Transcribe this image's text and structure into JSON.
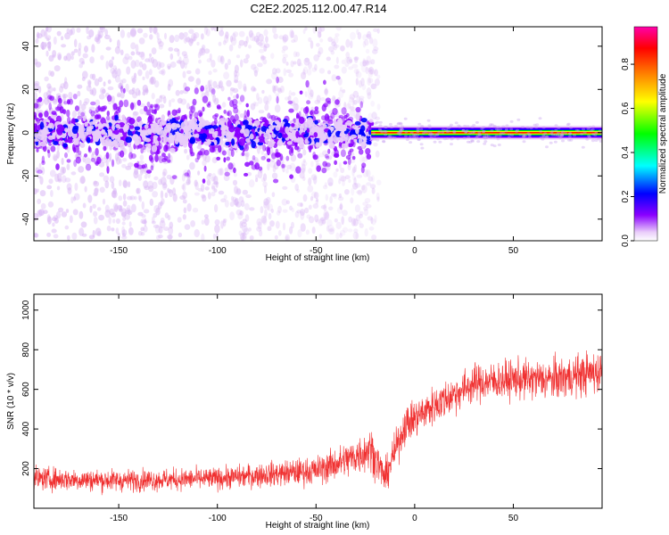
{
  "figure_title": "C2E2.2025.112.00.47.R14",
  "chart_data": [
    {
      "type": "heatmap",
      "panel": "spectrogram",
      "xlabel": "Height of straight line (km)",
      "ylabel": "Frequency (Hz)",
      "xlim": [
        -193,
        95
      ],
      "ylim": [
        -50,
        49
      ],
      "xticks": [
        -150,
        -100,
        -50,
        0,
        50
      ],
      "yticks": [
        -40,
        -20,
        0,
        20,
        40
      ],
      "grid": false,
      "colorbar": {
        "label": "Normalized spectral amplitude",
        "range": [
          0,
          0.97
        ],
        "ticks": [
          "0.0",
          "0.2",
          "0.4",
          "0.6",
          "0.8"
        ],
        "tick_values": [
          0,
          0.2,
          0.4,
          0.6,
          0.8
        ],
        "colors": [
          "#ffffff",
          "#e9cdfa",
          "#8a00ff",
          "#0000ff",
          "#00ffff",
          "#00ff00",
          "#ffff00",
          "#ff8000",
          "#ff0000",
          "#ff00aa"
        ]
      },
      "description_points": {
        "band_center_hz": 0,
        "noise_spread_hz_left": 49,
        "band_halfwidth_hz_left": 6,
        "transition_height_km": -22,
        "band_halfwidth_hz_right": 2
      }
    },
    {
      "type": "line",
      "panel": "snr",
      "xlabel": "Height of straight line (km)",
      "ylabel": "SNR (10 * v/v)",
      "xlim": [
        -193,
        95
      ],
      "ylim": [
        0,
        1080
      ],
      "xticks": [
        -150,
        -100,
        -50,
        0,
        50
      ],
      "yticks": [
        200,
        400,
        600,
        800,
        1000
      ],
      "grid": false,
      "series": [
        {
          "name": "SNR",
          "color": "#f03030",
          "trend_x": [
            -193,
            -150,
            -100,
            -75,
            -50,
            -35,
            -22,
            -15,
            -5,
            10,
            30,
            50,
            70,
            95
          ],
          "trend_mean": [
            150,
            140,
            150,
            170,
            190,
            240,
            300,
            150,
            420,
            520,
            630,
            650,
            650,
            690
          ],
          "trend_spread": [
            90,
            85,
            85,
            95,
            110,
            140,
            170,
            130,
            150,
            150,
            150,
            150,
            160,
            170
          ]
        }
      ]
    }
  ]
}
